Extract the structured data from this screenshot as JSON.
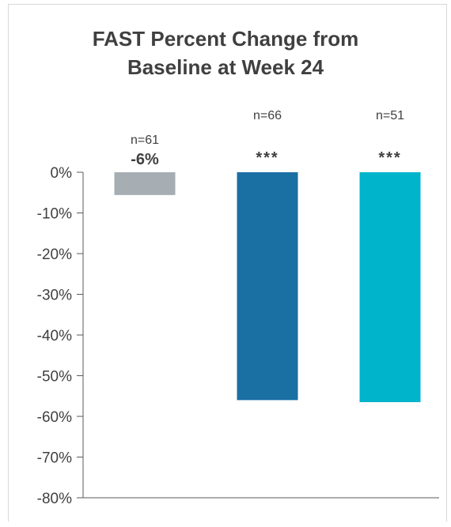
{
  "chart_data": {
    "type": "bar",
    "title_line1": "FAST Percent Change from",
    "title_line2": "Baseline at Week 24",
    "ylim": [
      -80,
      0
    ],
    "yticks": [
      "0%",
      "-10%",
      "-20%",
      "-30%",
      "-40%",
      "-50%",
      "-60%",
      "-70%",
      "-80%"
    ],
    "series": [
      {
        "values": [
          -5.6,
          -56,
          -56.5
        ]
      }
    ],
    "bar_colors": [
      "#a6aeb3",
      "#1a6fa3",
      "#00b4cc"
    ],
    "n_labels": [
      "n=61",
      "n=66",
      "n=51"
    ],
    "value_labels": [
      "-6%",
      "",
      ""
    ],
    "significance": [
      "",
      "***",
      "***"
    ]
  }
}
